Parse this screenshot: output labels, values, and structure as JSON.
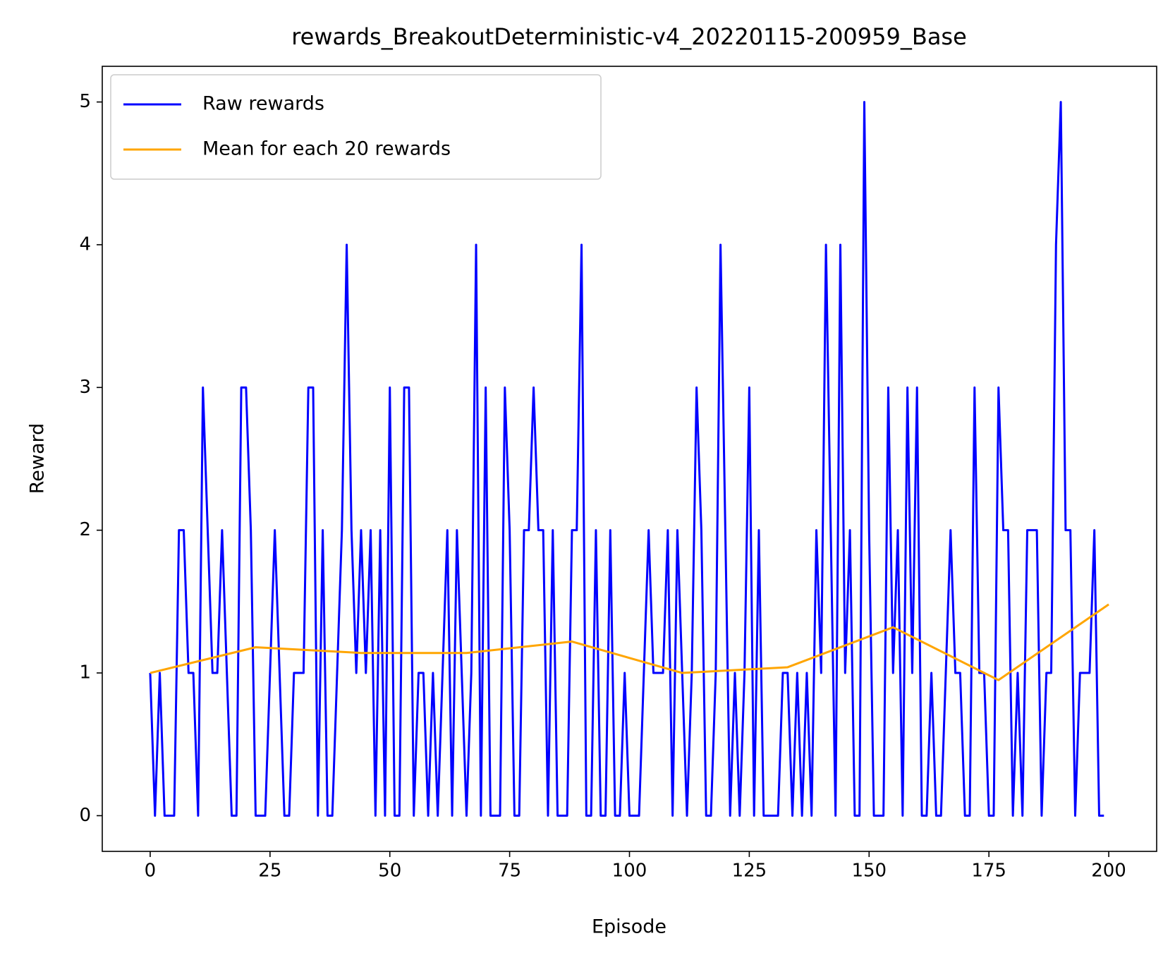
{
  "chart_data": {
    "type": "line",
    "title": "rewards_BreakoutDeterministic-v4_20220115-200959_Base",
    "xlabel": "Episode",
    "ylabel": "Reward",
    "xlim": [
      -10,
      210
    ],
    "ylim": [
      -0.25,
      5.25
    ],
    "xticks": [
      0,
      25,
      50,
      75,
      100,
      125,
      150,
      175,
      200
    ],
    "yticks": [
      0,
      1,
      2,
      3,
      4,
      5
    ],
    "legend": "upper left",
    "series": [
      {
        "name": "Raw rewards",
        "color": "#0000ff",
        "x": [
          0,
          1,
          2,
          3,
          4,
          5,
          6,
          7,
          8,
          9,
          10,
          11,
          12,
          13,
          14,
          15,
          16,
          17,
          18,
          19,
          20,
          21,
          22,
          23,
          24,
          25,
          26,
          27,
          28,
          29,
          30,
          31,
          32,
          33,
          34,
          35,
          36,
          37,
          38,
          39,
          40,
          41,
          42,
          43,
          44,
          45,
          46,
          47,
          48,
          49,
          50,
          51,
          52,
          53,
          54,
          55,
          56,
          57,
          58,
          59,
          60,
          61,
          62,
          63,
          64,
          65,
          66,
          67,
          68,
          69,
          70,
          71,
          72,
          73,
          74,
          75,
          76,
          77,
          78,
          79,
          80,
          81,
          82,
          83,
          84,
          85,
          86,
          87,
          88,
          89,
          90,
          91,
          92,
          93,
          94,
          95,
          96,
          97,
          98,
          99,
          100,
          101,
          102,
          103,
          104,
          105,
          106,
          107,
          108,
          109,
          110,
          111,
          112,
          113,
          114,
          115,
          116,
          117,
          118,
          119,
          120,
          121,
          122,
          123,
          124,
          125,
          126,
          127,
          128,
          129,
          130,
          131,
          132,
          133,
          134,
          135,
          136,
          137,
          138,
          139,
          140,
          141,
          142,
          143,
          144,
          145,
          146,
          147,
          148,
          149,
          150,
          151,
          152,
          153,
          154,
          155,
          156,
          157,
          158,
          159,
          160,
          161,
          162,
          163,
          164,
          165,
          166,
          167,
          168,
          169,
          170,
          171,
          172,
          173,
          174,
          175,
          176,
          177,
          178,
          179,
          180,
          181,
          182,
          183,
          184,
          185,
          186,
          187,
          188,
          189,
          190,
          191,
          192,
          193,
          194,
          195,
          196,
          197,
          198,
          199
        ],
        "values": [
          1,
          0,
          1,
          0,
          0,
          0,
          2,
          2,
          1,
          1,
          0,
          3,
          2,
          1,
          1,
          2,
          1,
          0,
          0,
          3,
          3,
          2,
          0,
          0,
          0,
          1,
          2,
          1,
          0,
          0,
          1,
          1,
          1,
          3,
          3,
          0,
          2,
          0,
          0,
          1,
          2,
          4,
          2,
          1,
          2,
          1,
          2,
          0,
          2,
          0,
          3,
          0,
          0,
          3,
          3,
          0,
          1,
          1,
          0,
          1,
          0,
          1,
          2,
          0,
          2,
          1,
          0,
          1,
          4,
          0,
          3,
          0,
          0,
          0,
          3,
          2,
          0,
          0,
          2,
          2,
          3,
          2,
          2,
          0,
          2,
          0,
          0,
          0,
          2,
          2,
          4,
          0,
          0,
          2,
          0,
          0,
          2,
          0,
          0,
          1,
          0,
          0,
          0,
          1,
          2,
          1,
          1,
          1,
          2,
          0,
          2,
          1,
          0,
          1,
          3,
          2,
          0,
          0,
          1,
          4,
          2,
          0,
          1,
          0,
          1,
          3,
          0,
          2,
          0,
          0,
          0,
          0,
          1,
          1,
          0,
          1,
          0,
          1,
          0,
          2,
          1,
          4,
          2,
          0,
          4,
          1,
          2,
          0,
          0,
          5,
          2,
          0,
          0,
          0,
          3,
          1,
          2,
          0,
          3,
          1,
          3,
          0,
          0,
          1,
          0,
          0,
          1,
          2,
          1,
          1,
          0,
          0,
          3,
          1,
          1,
          0,
          0,
          3,
          2,
          2,
          0,
          1,
          0,
          2,
          2,
          2,
          0,
          1,
          1,
          4,
          5,
          2,
          2,
          0,
          1,
          1,
          1,
          2,
          0,
          0
        ]
      },
      {
        "name": "Mean for each 20 rewards",
        "color": "#ffa500",
        "x": [
          0,
          22,
          44,
          66,
          88,
          111,
          133,
          155,
          177,
          200
        ],
        "values": [
          1.0,
          1.18,
          1.14,
          1.14,
          1.22,
          1.0,
          1.04,
          1.32,
          0.95,
          1.48
        ]
      }
    ]
  }
}
